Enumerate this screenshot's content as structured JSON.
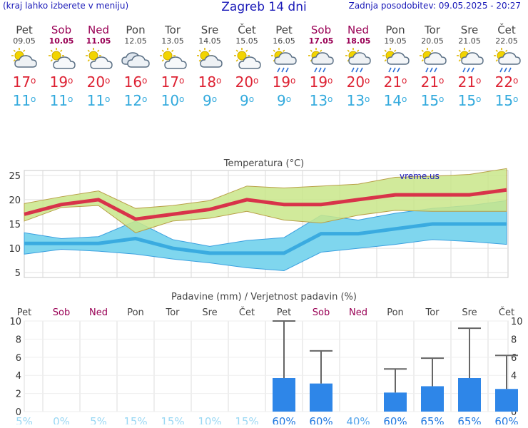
{
  "header": {
    "menu_hint": "(kraj lahko izberete v meniju)",
    "title": "Zagreb 14 dni",
    "updated": "Zadnja posodobitev: 09.05.2025 - 20:27"
  },
  "days": [
    {
      "name": "Pet",
      "date": "09.05",
      "weekend": false,
      "icon": "partly-cloudy-icon",
      "tmax": "17",
      "tmin": "11"
    },
    {
      "name": "Sob",
      "date": "10.05",
      "weekend": true,
      "icon": "sun-cloud-icon",
      "tmax": "19",
      "tmin": "11"
    },
    {
      "name": "Ned",
      "date": "11.05",
      "weekend": true,
      "icon": "sun-cloud-icon",
      "tmax": "20",
      "tmin": "11"
    },
    {
      "name": "Pon",
      "date": "12.05",
      "weekend": false,
      "icon": "cloudy-icon",
      "tmax": "16",
      "tmin": "12"
    },
    {
      "name": "Tor",
      "date": "13.05",
      "weekend": false,
      "icon": "sun-cloud-icon",
      "tmax": "17",
      "tmin": "10"
    },
    {
      "name": "Sre",
      "date": "14.05",
      "weekend": false,
      "icon": "partly-cloudy-icon",
      "tmax": "18",
      "tmin": "9"
    },
    {
      "name": "Čet",
      "date": "15.05",
      "weekend": false,
      "icon": "sun-cloud-icon",
      "tmax": "20",
      "tmin": "9"
    },
    {
      "name": "Pet",
      "date": "16.05",
      "weekend": false,
      "icon": "rain-cloud-icon",
      "tmax": "19",
      "tmin": "9"
    },
    {
      "name": "Sob",
      "date": "17.05",
      "weekend": true,
      "icon": "rain-cloud-icon",
      "tmax": "19",
      "tmin": "13"
    },
    {
      "name": "Ned",
      "date": "18.05",
      "weekend": true,
      "icon": "rain-cloud-icon",
      "tmax": "20",
      "tmin": "13"
    },
    {
      "name": "Pon",
      "date": "19.05",
      "weekend": false,
      "icon": "sun-rain-icon",
      "tmax": "21",
      "tmin": "14"
    },
    {
      "name": "Tor",
      "date": "20.05",
      "weekend": false,
      "icon": "sun-rain-icon",
      "tmax": "21",
      "tmin": "15"
    },
    {
      "name": "Sre",
      "date": "21.05",
      "weekend": false,
      "icon": "sun-rain-icon",
      "tmax": "21",
      "tmin": "15"
    },
    {
      "name": "Čet",
      "date": "22.05",
      "weekend": false,
      "icon": "sun-rain-icon",
      "tmax": "22",
      "tmin": "15"
    }
  ],
  "colors": {
    "max": "#d8334a",
    "min": "#3aabe0",
    "max_band": "#c9e68a",
    "min_band": "#7fd6ee",
    "overlap": "#55b54a",
    "bar": "#2e86e8",
    "weekend": "#990055",
    "title": "#1a1ab8"
  },
  "chart_data": [
    {
      "type": "line",
      "title": "Temperatura (°C)",
      "watermark": "vreme.us",
      "categories": [
        "09.05",
        "10.05",
        "11.05",
        "12.05",
        "13.05",
        "14.05",
        "15.05",
        "16.05",
        "17.05",
        "18.05",
        "19.05",
        "20.05",
        "21.05",
        "22.05"
      ],
      "ylim": [
        4,
        26
      ],
      "yticks": [
        "5",
        "10",
        "15",
        "20",
        "25"
      ],
      "grid": true,
      "series": [
        {
          "values": [
            17,
            19,
            20,
            16,
            17,
            18,
            20,
            19,
            19,
            20,
            21,
            21,
            21,
            22
          ]
        },
        {
          "values": [
            11,
            11,
            11,
            12,
            10,
            9,
            9,
            9,
            13,
            13,
            14,
            15,
            15,
            15
          ]
        },
        {
          "values": [
            19.2,
            20.6,
            21.8,
            18.2,
            18.8,
            19.8,
            22.8,
            22.4,
            22.8,
            23.2,
            24.6,
            24.8,
            25.2,
            26.4
          ]
        },
        {
          "values": [
            15.6,
            18.4,
            18.8,
            13.2,
            15.6,
            16.2,
            17.6,
            15.8,
            15.2,
            16.8,
            17.8,
            17.6,
            17.6,
            17.6
          ]
        },
        {
          "values": [
            13.2,
            12.0,
            12.4,
            15.6,
            11.8,
            10.4,
            11.6,
            12.2,
            16.8,
            15.8,
            17.2,
            18.2,
            18.8,
            19.8
          ]
        },
        {
          "values": [
            8.8,
            9.8,
            9.4,
            8.8,
            7.8,
            7.0,
            6.0,
            5.4,
            9.2,
            10.0,
            10.8,
            11.8,
            11.4,
            10.8
          ]
        }
      ]
    },
    {
      "type": "bar",
      "title": "Padavine (mm) / Verjetnost padavin (%)",
      "categories": [
        "Pet",
        "Sob",
        "Ned",
        "Pon",
        "Tor",
        "Sre",
        "Čet",
        "Pet",
        "Sob",
        "Ned",
        "Pon",
        "Tor",
        "Sre",
        "Čet"
      ],
      "values": [
        0,
        0,
        0,
        0,
        0,
        0,
        0,
        3.7,
        3.1,
        0,
        2.1,
        2.8,
        3.7,
        2.5
      ],
      "max_values": [
        0,
        0,
        0,
        0,
        0,
        0,
        0,
        10.0,
        6.7,
        0,
        4.7,
        5.9,
        9.2,
        6.2
      ],
      "probability": [
        "5%",
        "0%",
        "5%",
        "15%",
        "15%",
        "10%",
        "15%",
        "60%",
        "60%",
        "40%",
        "60%",
        "65%",
        "65%",
        "60%"
      ],
      "ylim": [
        0,
        10
      ],
      "yticks": [
        "0",
        "2",
        "4",
        "6",
        "8",
        "10"
      ],
      "grid": true
    }
  ]
}
